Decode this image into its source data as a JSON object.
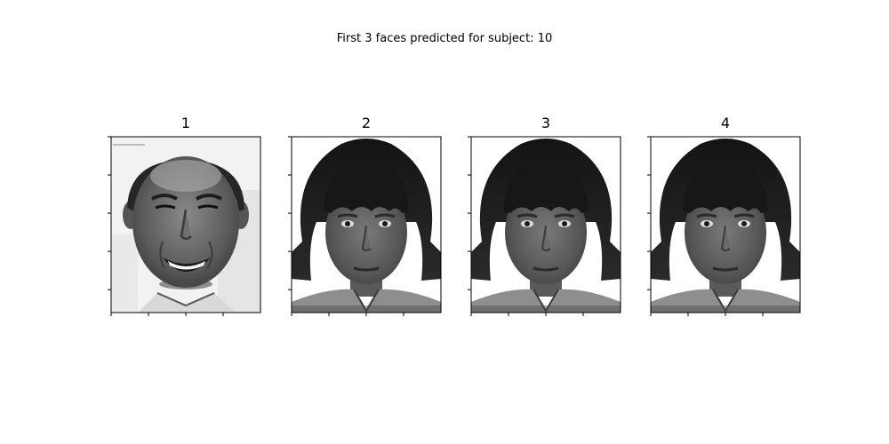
{
  "figure": {
    "suptitle": "First 3 faces predicted for subject: 10"
  },
  "chart_data": {
    "type": "image_grid",
    "title": "First 3 faces predicted for subject: 10",
    "subject": 10,
    "grid": {
      "rows": 1,
      "cols": 4
    },
    "panels": [
      {
        "title": "1",
        "image": "query face: smiling middle-aged man, balding, grayscale"
      },
      {
        "title": "2",
        "image": "predicted face: woman with dark bob haircut and fringe, grayscale"
      },
      {
        "title": "3",
        "image": "predicted face: woman with dark bob haircut and fringe, grayscale"
      },
      {
        "title": "4",
        "image": "predicted face: woman with dark bob haircut and fringe, grayscale"
      }
    ],
    "x_ticks": 4,
    "y_ticks": 5,
    "tick_labels_visible": false
  },
  "colors": {
    "background": "#ffffff",
    "axes": "#000000",
    "tick": "#000000"
  }
}
